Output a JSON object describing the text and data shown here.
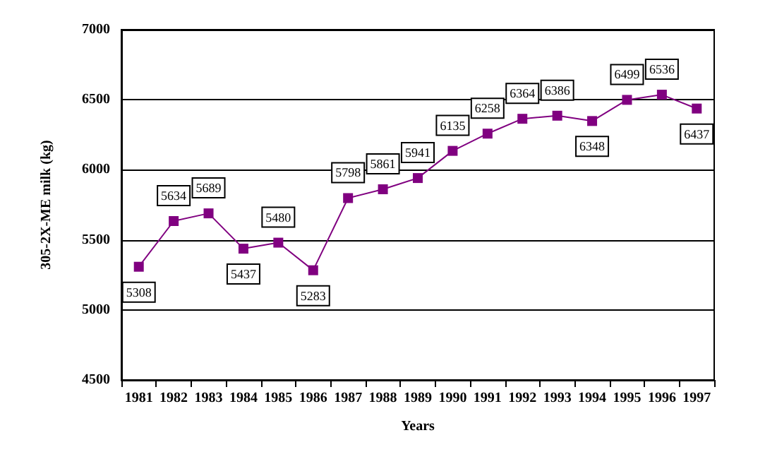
{
  "chart_data": {
    "type": "line",
    "xlabel": "Years",
    "ylabel": "305-2X-ME milk (kg)",
    "categories": [
      "1981",
      "1982",
      "1983",
      "1984",
      "1985",
      "1986",
      "1987",
      "1988",
      "1989",
      "1990",
      "1991",
      "1992",
      "1993",
      "1994",
      "1995",
      "1996",
      "1997"
    ],
    "series": [
      {
        "color": "#800080",
        "values": [
          5308,
          5634,
          5689,
          5437,
          5480,
          5283,
          5798,
          5861,
          5941,
          6135,
          6258,
          6364,
          6386,
          6348,
          6499,
          6536,
          6437
        ]
      }
    ],
    "ylim": [
      4500,
      7000
    ],
    "yticks": [
      4500,
      5000,
      5500,
      6000,
      6500,
      7000
    ],
    "grid": "y",
    "marker": "square",
    "line_style": "solid",
    "data_labels": true
  }
}
